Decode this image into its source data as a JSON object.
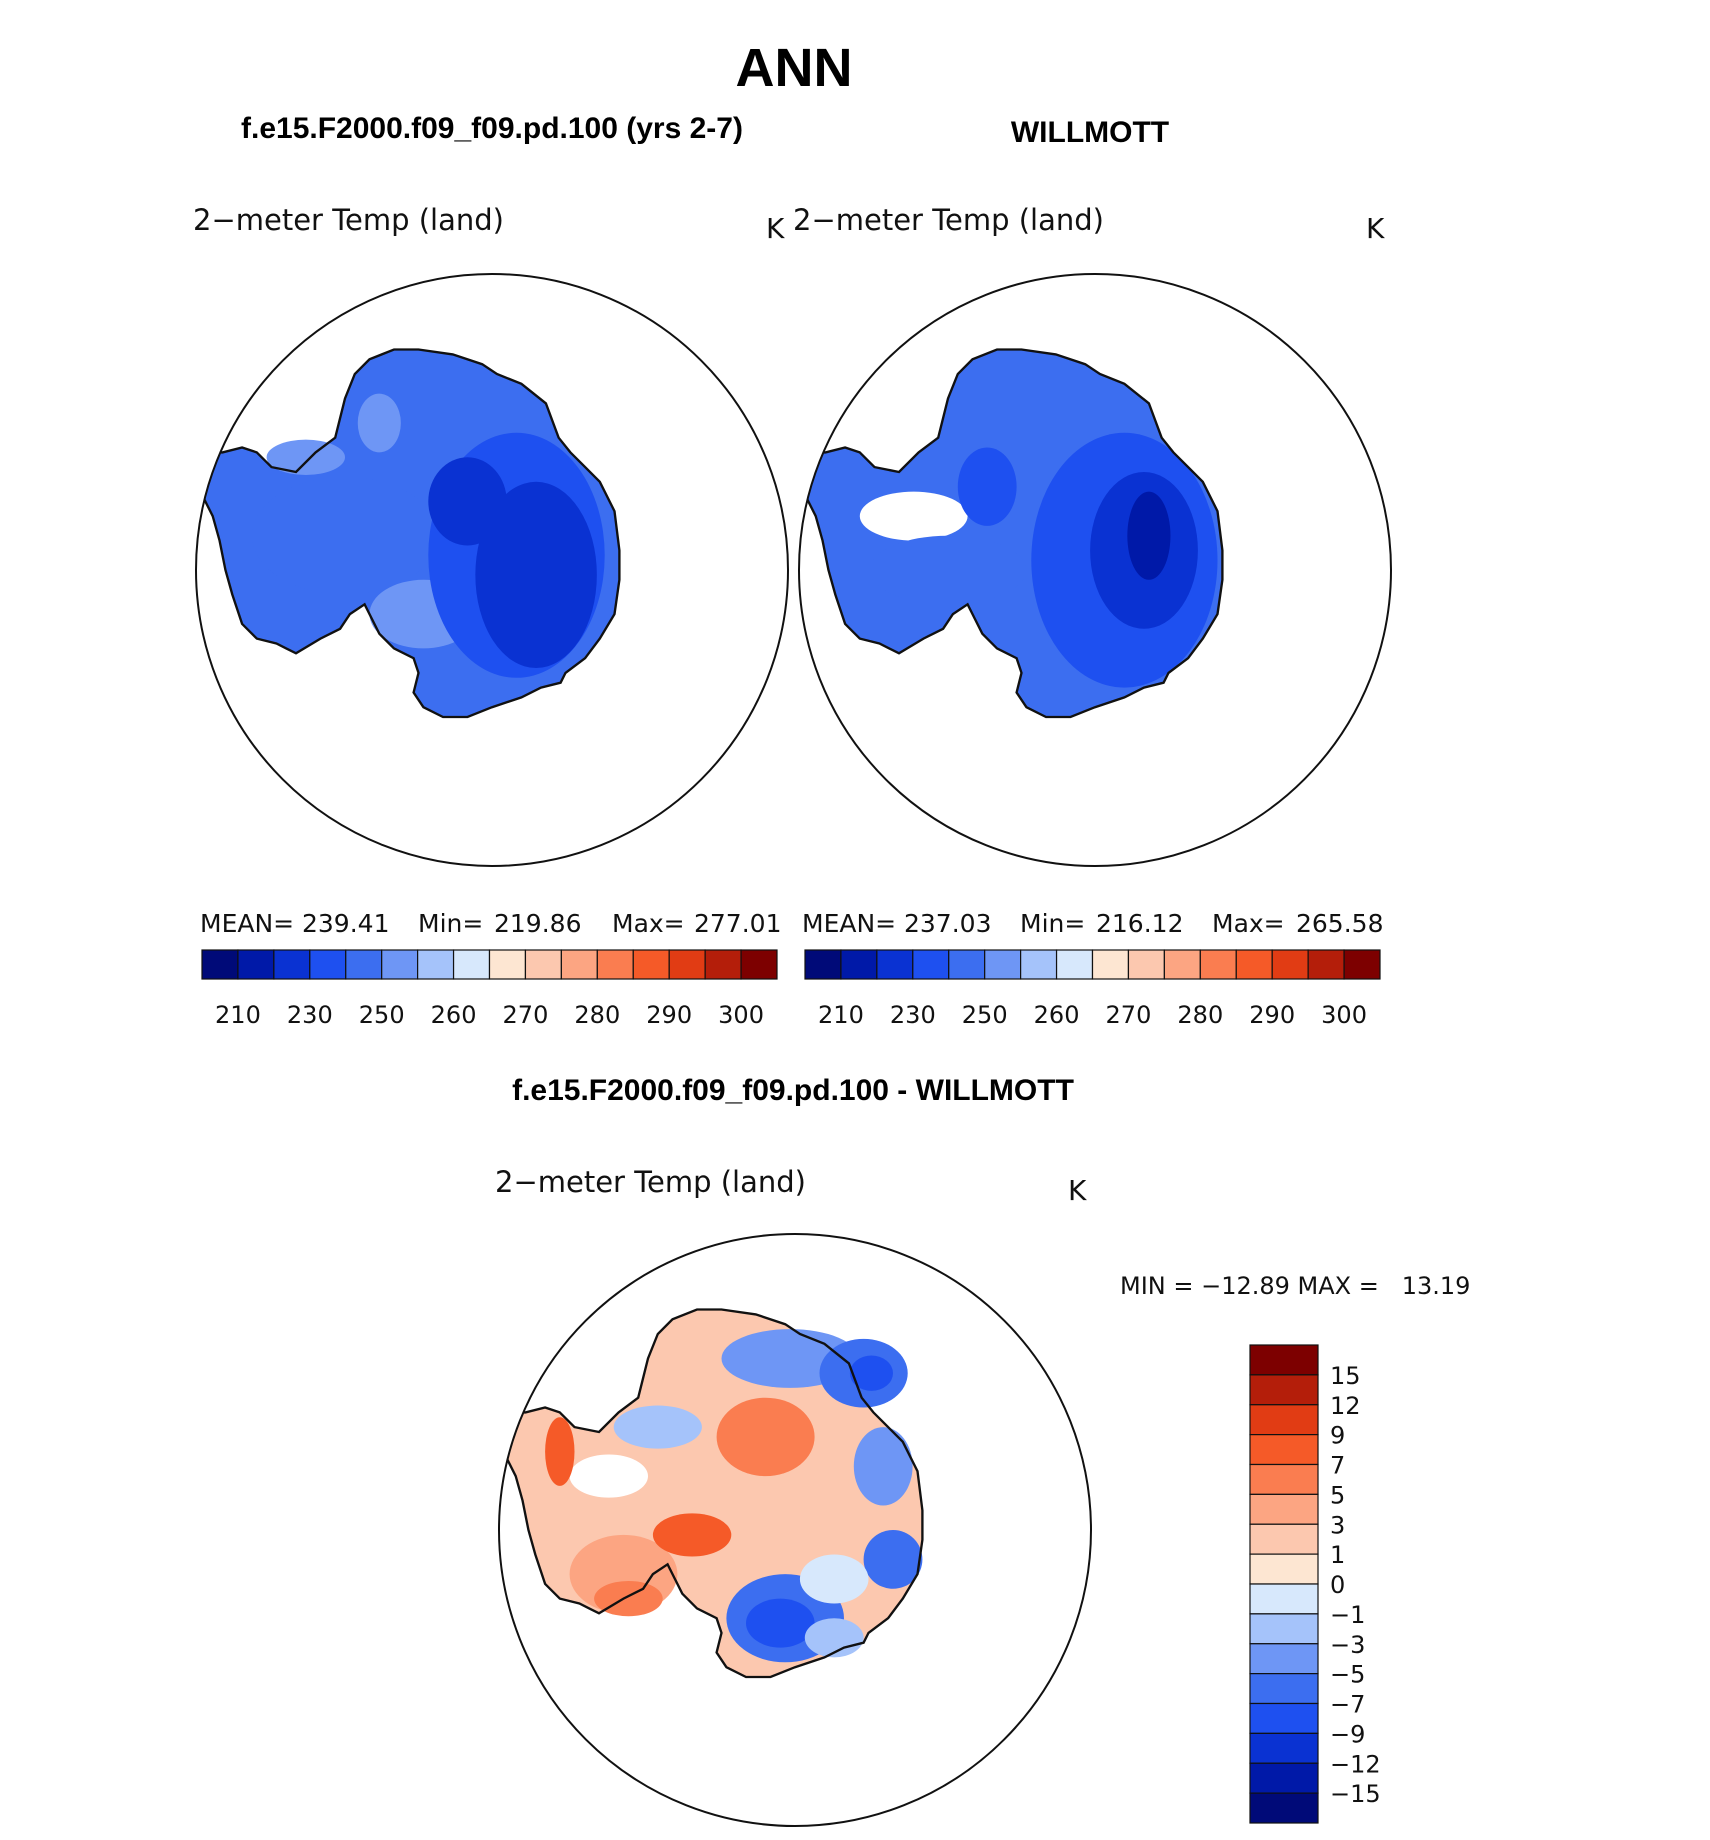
{
  "title": "ANN",
  "top_panels": [
    {
      "case_title": "f.e15.F2000.f09_f09.pd.100 (yrs 2-7)",
      "variable_label": "2−meter Temp (land)",
      "units": "K",
      "stats": {
        "mean_label": "MEAN=",
        "mean": "239.41",
        "min_label": "Min=",
        "min": "219.86",
        "max_label": "Max=",
        "max": "277.01"
      }
    },
    {
      "case_title": "WILLMOTT",
      "variable_label": "2−meter Temp (land)",
      "units": "K",
      "stats": {
        "mean_label": "MEAN=",
        "mean": "237.03",
        "min_label": "Min=",
        "min": "216.12",
        "max_label": "Max=",
        "max": "265.58"
      }
    }
  ],
  "top_colorbar": {
    "colors": [
      "#000a78",
      "#0019a8",
      "#0a32d2",
      "#1e50f0",
      "#3c6ef0",
      "#6e96f5",
      "#a5c3fa",
      "#d7e8fc",
      "#fde6d2",
      "#fcc8af",
      "#fca582",
      "#fa7d50",
      "#f55a28",
      "#e13c14",
      "#b41e0a",
      "#7d0000"
    ],
    "tick_labels": [
      "210",
      "230",
      "250",
      "260",
      "270",
      "280",
      "290",
      "300"
    ]
  },
  "diff_panel": {
    "title": "f.e15.F2000.f09_f09.pd.100 - WILLMOTT",
    "variable_label": "2−meter Temp (land)",
    "units": "K",
    "minmax_label": "MIN = −12.89 MAX =   13.19"
  },
  "diff_colorbar": {
    "colors": [
      "#7d0000",
      "#b41e0a",
      "#e13c14",
      "#f55a28",
      "#fa7d50",
      "#fca582",
      "#fcc8af",
      "#fde6d2",
      "#d7e8fc",
      "#a5c3fa",
      "#6e96f5",
      "#3c6ef0",
      "#1e50f0",
      "#0a32d2",
      "#0019a8",
      "#000a78"
    ],
    "tick_labels": [
      "15",
      "12",
      "9",
      "7",
      "5",
      "3",
      "1",
      "0",
      "−1",
      "−3",
      "−5",
      "−7",
      "−9",
      "−12",
      "−15"
    ]
  }
}
